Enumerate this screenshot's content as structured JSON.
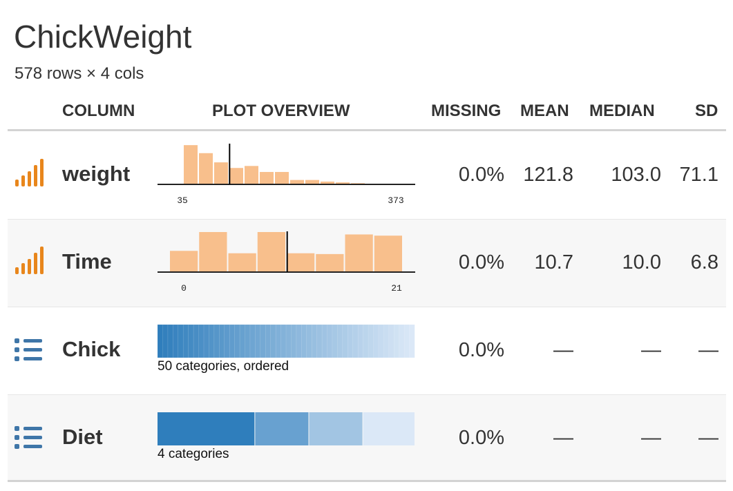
{
  "dataset": {
    "title": "ChickWeight",
    "subtitle": "578 rows × 4 cols"
  },
  "headers": {
    "column": "COLUMN",
    "plot": "PLOT OVERVIEW",
    "missing": "MISSING",
    "mean": "MEAN",
    "median": "MEDIAN",
    "sd": "SD"
  },
  "rows": [
    {
      "name": "weight",
      "type_icon": "numeric-bars-icon",
      "missing": "0.0%",
      "mean": "121.8",
      "median": "103.0",
      "sd": "71.1",
      "axis_min": "35",
      "axis_max": "373",
      "hist": [
        0.98,
        0.78,
        0.55,
        0.41,
        0.46,
        0.31,
        0.31,
        0.11,
        0.11,
        0.07,
        0.05,
        0.03
      ],
      "mean_marker": 0.255
    },
    {
      "name": "Time",
      "type_icon": "numeric-bars-icon",
      "missing": "0.0%",
      "mean": "10.7",
      "median": "10.0",
      "sd": "6.8",
      "axis_min": "0",
      "axis_max": "21",
      "hist": [
        0.53,
        1.0,
        0.47,
        1.0,
        0.47,
        0.45,
        0.94,
        0.91
      ],
      "mean_marker": 0.505
    },
    {
      "name": "Chick",
      "type_icon": "list-icon",
      "missing": "0.0%",
      "mean": "—",
      "median": "—",
      "sd": "—",
      "category_label": "50 categories, ordered",
      "category_count": 50
    },
    {
      "name": "Diet",
      "type_icon": "list-icon",
      "missing": "0.0%",
      "mean": "—",
      "median": "—",
      "sd": "—",
      "category_label": "4 categories",
      "category_shares": [
        0.38,
        0.21,
        0.21,
        0.2
      ]
    }
  ],
  "colors": {
    "numeric_bar": "#f8bf8c",
    "numeric_icon": "#e8861c",
    "category_dark": "#2f7ebc",
    "category_light": "#dbe8f7",
    "list_icon": "#3f76a8"
  }
}
